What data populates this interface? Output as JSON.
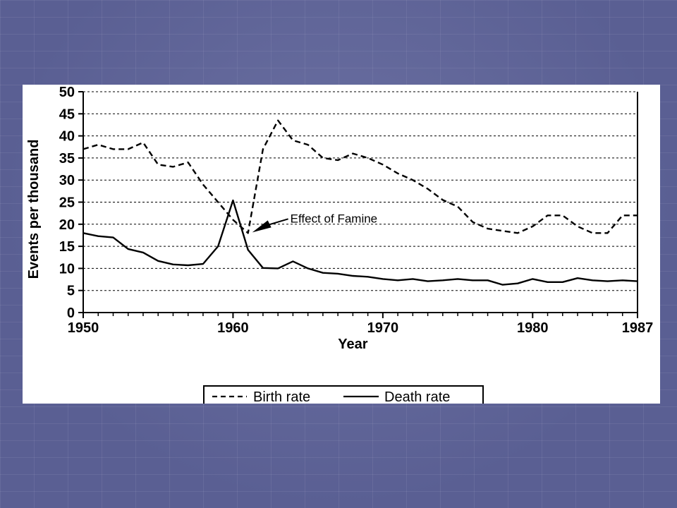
{
  "chart_data": {
    "type": "line",
    "xlabel": "Year",
    "ylabel": "Events per thousand",
    "xlim": [
      1950,
      1987
    ],
    "ylim": [
      0,
      50
    ],
    "x_ticks": [
      1950,
      1960,
      1970,
      1980,
      1987
    ],
    "y_ticks": [
      0,
      5,
      10,
      15,
      20,
      25,
      30,
      35,
      40,
      45,
      50
    ],
    "grid": "horizontal dashed",
    "legend_position": "bottom-center",
    "x": [
      1950,
      1951,
      1952,
      1953,
      1954,
      1955,
      1956,
      1957,
      1958,
      1959,
      1960,
      1961,
      1962,
      1963,
      1964,
      1965,
      1966,
      1967,
      1968,
      1969,
      1970,
      1971,
      1972,
      1973,
      1974,
      1975,
      1976,
      1977,
      1978,
      1979,
      1980,
      1981,
      1982,
      1983,
      1984,
      1985,
      1986,
      1987
    ],
    "series": [
      {
        "name": "Birth rate",
        "style": "dashed",
        "values": [
          37,
          38,
          37,
          37,
          38.5,
          33.5,
          33,
          34,
          29,
          25,
          21,
          18,
          37,
          43.5,
          39,
          38,
          35,
          34.5,
          36,
          35,
          33.5,
          31.5,
          30,
          28,
          25.5,
          24,
          20.5,
          19,
          18.5,
          18,
          19.5,
          22,
          22,
          19.5,
          18,
          18,
          22,
          22
        ]
      },
      {
        "name": "Death rate",
        "style": "solid",
        "values": [
          18,
          17.3,
          17,
          14.4,
          13.6,
          11.7,
          10.9,
          10.7,
          11,
          15,
          25.4,
          14.2,
          10.1,
          10,
          11.6,
          10,
          9,
          8.8,
          8.3,
          8.1,
          7.6,
          7.3,
          7.6,
          7.1,
          7.3,
          7.6,
          7.3,
          7.3,
          6.3,
          6.6,
          7.6,
          6.9,
          6.9,
          7.8,
          7.3,
          7.1,
          7.3,
          7.1
        ]
      }
    ],
    "annotations": [
      {
        "text": "Effect of Famine",
        "x": 1961,
        "y": 18
      }
    ],
    "legend": {
      "birth_label": "Birth rate",
      "death_label": "Death rate"
    }
  }
}
